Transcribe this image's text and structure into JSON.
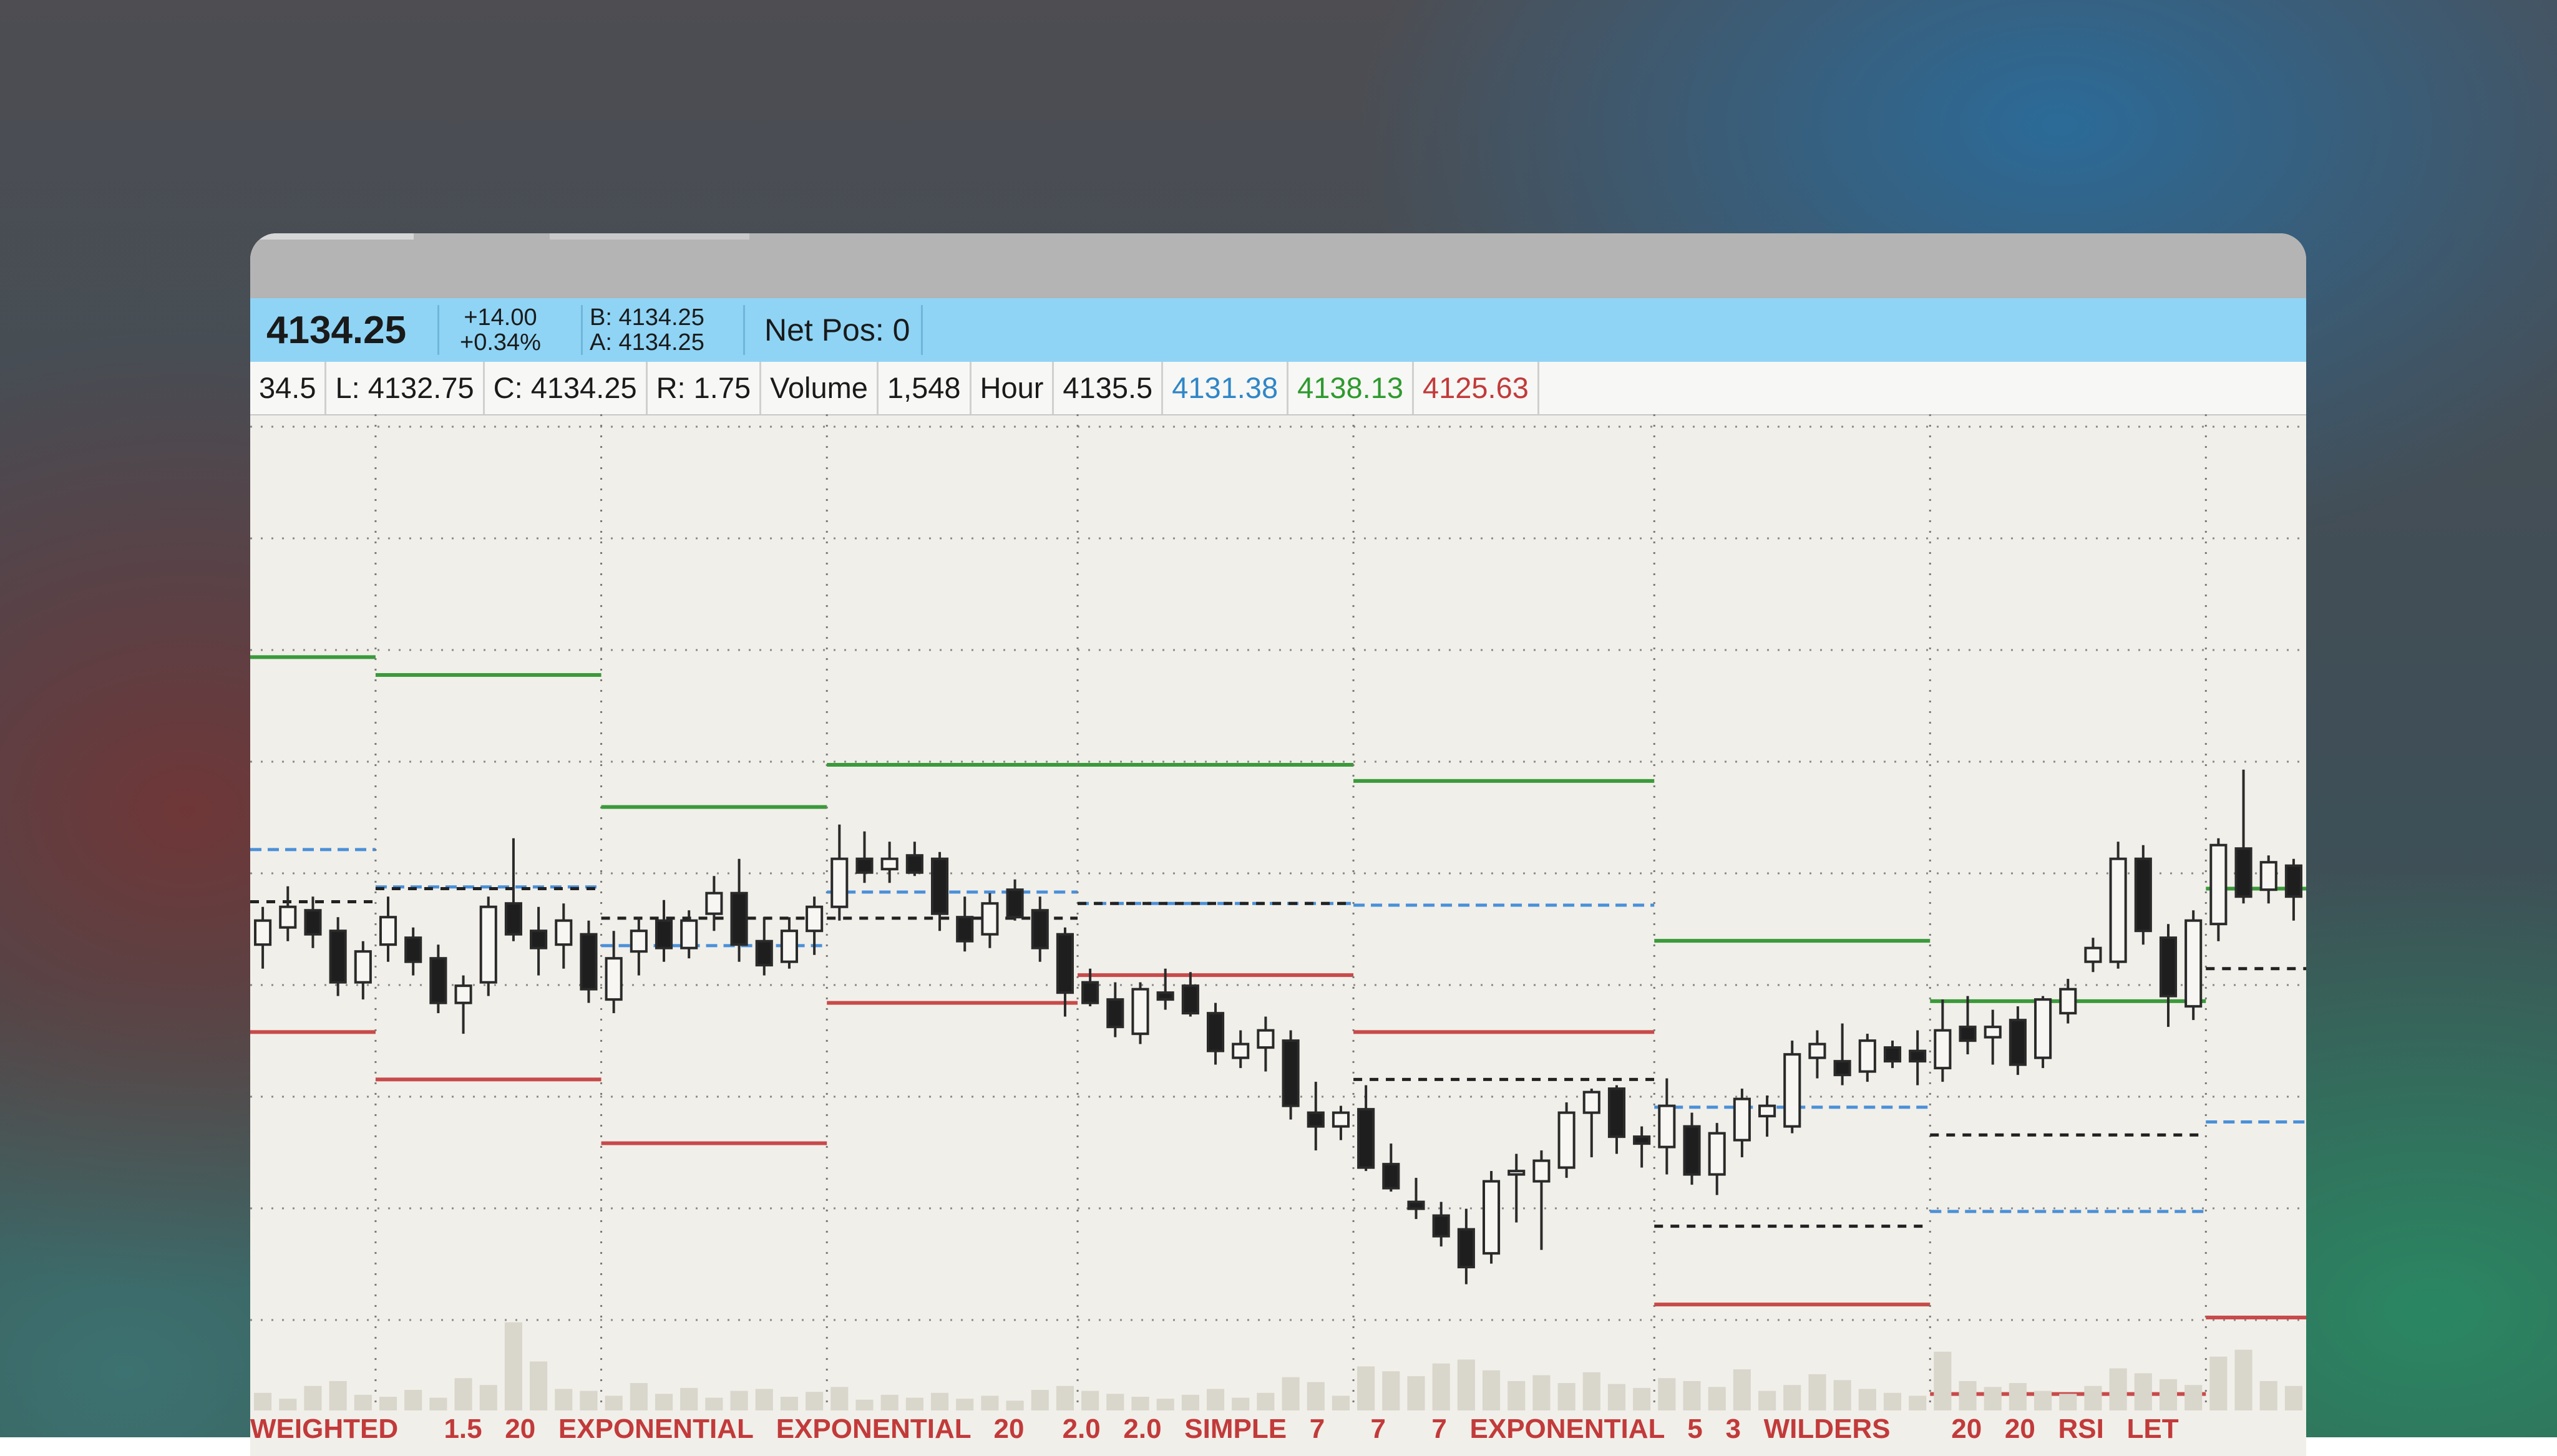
{
  "header": {
    "price": "4134.25",
    "change": "+14.00",
    "change_pct": "+0.34%",
    "bid": "B: 4134.25",
    "ask": "A: 4134.25",
    "net_pos": "Net Pos: 0"
  },
  "info": [
    {
      "text": "34.5"
    },
    {
      "text": "L: 4132.75"
    },
    {
      "text": "C: 4134.25"
    },
    {
      "text": "R: 1.75"
    },
    {
      "text": "Volume"
    },
    {
      "text": "1,548"
    },
    {
      "text": "Hour"
    },
    {
      "text": "4135.5"
    },
    {
      "text": "4131.38",
      "color": "#2f86c8"
    },
    {
      "text": "4138.13",
      "color": "#2e9a2e"
    },
    {
      "text": "4125.63",
      "color": "#c23a3a"
    }
  ],
  "studies": "WEIGHTED      1.5   20   EXPONENTIAL   EXPONENTIAL   20     2.0   2.0   SIMPLE   7      7      7   EXPONENTIAL   5   3   WILDERS        20   20   RSI   LET",
  "chart_data": {
    "type": "candlestick",
    "ylim": [
      4122.92,
      4151.96
    ],
    "vlim": [
      0,
      10000
    ],
    "colors": {
      "up": "#f7f6f2",
      "down": "#1e1e1e",
      "outline": "#2a2a2a",
      "r": "#3a9a3a",
      "pivot": "#4a90d9",
      "s": "#c84a4a",
      "mid": "#222222",
      "volume": "#d9d6cc"
    },
    "sessions": [
      {
        "r": 4144.88,
        "pivot": 4139.27,
        "s": 4133.95,
        "mid": 4137.75,
        "candles": [
          {
            "o": 4136.5,
            "h": 4137.6,
            "l": 4135.8,
            "c": 4137.2,
            "v": 1800
          },
          {
            "o": 4137.0,
            "h": 4138.2,
            "l": 4136.6,
            "c": 4137.6,
            "v": 1200
          },
          {
            "o": 4137.5,
            "h": 4137.9,
            "l": 4136.4,
            "c": 4136.8,
            "v": 2500
          },
          {
            "o": 4136.9,
            "h": 4137.3,
            "l": 4135.0,
            "c": 4135.4,
            "v": 3000
          },
          {
            "o": 4135.4,
            "h": 4136.6,
            "l": 4134.9,
            "c": 4136.3,
            "v": 1600
          }
        ]
      },
      {
        "r": 4144.36,
        "pivot": 4138.18,
        "s": 4132.57,
        "mid": 4138.13,
        "candles": [
          {
            "o": 4136.5,
            "h": 4137.9,
            "l": 4136.0,
            "c": 4137.3,
            "v": 1400
          },
          {
            "o": 4136.7,
            "h": 4137.0,
            "l": 4135.6,
            "c": 4136.0,
            "v": 2100
          },
          {
            "o": 4136.1,
            "h": 4136.5,
            "l": 4134.5,
            "c": 4134.8,
            "v": 1300
          },
          {
            "o": 4134.8,
            "h": 4135.6,
            "l": 4133.9,
            "c": 4135.3,
            "v": 3300
          },
          {
            "o": 4135.4,
            "h": 4137.9,
            "l": 4135.0,
            "c": 4137.6,
            "v": 2600
          },
          {
            "o": 4137.7,
            "h": 4139.6,
            "l": 4136.6,
            "c": 4136.8,
            "v": 9000
          },
          {
            "o": 4136.9,
            "h": 4137.6,
            "l": 4135.6,
            "c": 4136.4,
            "v": 5000
          },
          {
            "o": 4136.5,
            "h": 4137.7,
            "l": 4135.8,
            "c": 4137.2,
            "v": 2200
          },
          {
            "o": 4136.8,
            "h": 4137.2,
            "l": 4134.8,
            "c": 4135.2,
            "v": 2000
          }
        ]
      },
      {
        "r": 4140.51,
        "pivot": 4136.47,
        "s": 4130.71,
        "mid": 4137.27,
        "candles": [
          {
            "o": 4134.9,
            "h": 4136.9,
            "l": 4134.5,
            "c": 4136.1,
            "v": 1500
          },
          {
            "o": 4136.3,
            "h": 4137.3,
            "l": 4135.6,
            "c": 4136.9,
            "v": 2800
          },
          {
            "o": 4137.2,
            "h": 4137.8,
            "l": 4136.0,
            "c": 4136.4,
            "v": 1700
          },
          {
            "o": 4136.4,
            "h": 4137.5,
            "l": 4136.1,
            "c": 4137.2,
            "v": 2300
          },
          {
            "o": 4137.4,
            "h": 4138.5,
            "l": 4136.9,
            "c": 4138.0,
            "v": 1300
          },
          {
            "o": 4138.0,
            "h": 4139.0,
            "l": 4136.0,
            "c": 4136.5,
            "v": 2000
          },
          {
            "o": 4136.6,
            "h": 4137.3,
            "l": 4135.6,
            "c": 4135.9,
            "v": 2200
          },
          {
            "o": 4136.0,
            "h": 4137.3,
            "l": 4135.8,
            "c": 4136.9,
            "v": 1400
          },
          {
            "o": 4136.9,
            "h": 4137.9,
            "l": 4136.2,
            "c": 4137.6,
            "v": 1900
          }
        ]
      },
      {
        "r": 4141.74,
        "pivot": 4138.03,
        "s": 4134.8,
        "mid": 4137.27,
        "candles": [
          {
            "o": 4137.6,
            "h": 4140.0,
            "l": 4137.2,
            "c": 4139.0,
            "v": 2400
          },
          {
            "o": 4139.0,
            "h": 4139.8,
            "l": 4138.3,
            "c": 4138.6,
            "v": 1100
          },
          {
            "o": 4138.7,
            "h": 4139.5,
            "l": 4138.3,
            "c": 4139.0,
            "v": 1600
          },
          {
            "o": 4139.1,
            "h": 4139.5,
            "l": 4138.5,
            "c": 4138.6,
            "v": 1300
          },
          {
            "o": 4139.0,
            "h": 4139.2,
            "l": 4136.9,
            "c": 4137.4,
            "v": 1800
          },
          {
            "o": 4137.3,
            "h": 4137.9,
            "l": 4136.3,
            "c": 4136.6,
            "v": 1200
          },
          {
            "o": 4136.8,
            "h": 4138.0,
            "l": 4136.4,
            "c": 4137.7,
            "v": 1500
          },
          {
            "o": 4138.1,
            "h": 4138.4,
            "l": 4137.2,
            "c": 4137.3,
            "v": 1000
          },
          {
            "o": 4137.5,
            "h": 4137.9,
            "l": 4136.0,
            "c": 4136.4,
            "v": 2100
          },
          {
            "o": 4136.8,
            "h": 4137.0,
            "l": 4134.4,
            "c": 4135.1,
            "v": 2500
          }
        ]
      },
      {
        "r": 4141.74,
        "pivot": 4137.7,
        "s": 4135.61,
        "mid": 4137.7,
        "candles": [
          {
            "o": 4135.4,
            "h": 4135.8,
            "l": 4134.7,
            "c": 4134.8,
            "v": 2000
          },
          {
            "o": 4134.9,
            "h": 4135.4,
            "l": 4133.8,
            "c": 4134.1,
            "v": 1700
          },
          {
            "o": 4133.9,
            "h": 4135.4,
            "l": 4133.6,
            "c": 4135.2,
            "v": 1400
          },
          {
            "o": 4135.1,
            "h": 4135.8,
            "l": 4134.6,
            "c": 4134.9,
            "v": 1200
          },
          {
            "o": 4135.3,
            "h": 4135.7,
            "l": 4134.4,
            "c": 4134.5,
            "v": 1600
          },
          {
            "o": 4134.5,
            "h": 4134.8,
            "l": 4133.0,
            "c": 4133.4,
            "v": 2200
          },
          {
            "o": 4133.2,
            "h": 4134.0,
            "l": 4132.9,
            "c": 4133.6,
            "v": 1300
          },
          {
            "o": 4133.5,
            "h": 4134.4,
            "l": 4132.8,
            "c": 4134.0,
            "v": 1800
          },
          {
            "o": 4133.7,
            "h": 4134.0,
            "l": 4131.4,
            "c": 4131.8,
            "v": 3400
          },
          {
            "o": 4131.6,
            "h": 4132.5,
            "l": 4130.5,
            "c": 4131.2,
            "v": 2900
          },
          {
            "o": 4131.2,
            "h": 4131.8,
            "l": 4130.8,
            "c": 4131.6,
            "v": 1500
          }
        ]
      },
      {
        "r": 4141.27,
        "pivot": 4137.65,
        "s": 4133.95,
        "mid": 4132.57,
        "candles": [
          {
            "o": 4131.7,
            "h": 4132.4,
            "l": 4129.9,
            "c": 4130.0,
            "v": 4500
          },
          {
            "o": 4130.1,
            "h": 4130.7,
            "l": 4129.3,
            "c": 4129.4,
            "v": 4000
          },
          {
            "o": 4129.0,
            "h": 4129.7,
            "l": 4128.5,
            "c": 4128.8,
            "v": 3500
          },
          {
            "o": 4128.6,
            "h": 4129.0,
            "l": 4127.7,
            "c": 4128.0,
            "v": 4800
          },
          {
            "o": 4128.2,
            "h": 4128.8,
            "l": 4126.6,
            "c": 4127.1,
            "v": 5200
          },
          {
            "o": 4127.5,
            "h": 4129.9,
            "l": 4127.2,
            "c": 4129.6,
            "v": 4100
          },
          {
            "o": 4129.8,
            "h": 4130.4,
            "l": 4128.4,
            "c": 4129.9,
            "v": 3000
          },
          {
            "o": 4129.6,
            "h": 4130.5,
            "l": 4127.6,
            "c": 4130.2,
            "v": 3600
          },
          {
            "o": 4130.0,
            "h": 4131.9,
            "l": 4129.7,
            "c": 4131.6,
            "v": 2800
          },
          {
            "o": 4131.6,
            "h": 4132.3,
            "l": 4130.3,
            "c": 4132.2,
            "v": 3900
          },
          {
            "o": 4132.3,
            "h": 4132.4,
            "l": 4130.4,
            "c": 4130.9,
            "v": 2700
          },
          {
            "o": 4130.9,
            "h": 4131.2,
            "l": 4130.0,
            "c": 4130.7,
            "v": 2300
          }
        ]
      },
      {
        "r": 4136.61,
        "pivot": 4131.76,
        "s": 4126.01,
        "mid": 4128.29,
        "candles": [
          {
            "o": 4130.6,
            "h": 4132.6,
            "l": 4129.8,
            "c": 4131.8,
            "v": 3300
          },
          {
            "o": 4131.2,
            "h": 4131.6,
            "l": 4129.5,
            "c": 4129.8,
            "v": 3000
          },
          {
            "o": 4129.8,
            "h": 4131.3,
            "l": 4129.2,
            "c": 4131.0,
            "v": 2400
          },
          {
            "o": 4130.8,
            "h": 4132.3,
            "l": 4130.3,
            "c": 4132.0,
            "v": 4200
          },
          {
            "o": 4131.5,
            "h": 4132.1,
            "l": 4130.9,
            "c": 4131.8,
            "v": 2000
          },
          {
            "o": 4131.2,
            "h": 4133.7,
            "l": 4131.0,
            "c": 4133.3,
            "v": 2600
          },
          {
            "o": 4133.2,
            "h": 4134.0,
            "l": 4132.6,
            "c": 4133.6,
            "v": 3700
          },
          {
            "o": 4133.1,
            "h": 4134.2,
            "l": 4132.4,
            "c": 4132.7,
            "v": 3100
          },
          {
            "o": 4132.8,
            "h": 4133.9,
            "l": 4132.5,
            "c": 4133.7,
            "v": 2200
          },
          {
            "o": 4133.5,
            "h": 4133.7,
            "l": 4132.9,
            "c": 4133.1,
            "v": 1800
          },
          {
            "o": 4133.4,
            "h": 4134.0,
            "l": 4132.4,
            "c": 4133.1,
            "v": 1500
          }
        ]
      },
      {
        "r": 4134.85,
        "pivot": 4128.72,
        "s": 4123.4,
        "mid": 4130.95,
        "candles": [
          {
            "o": 4132.9,
            "h": 4134.9,
            "l": 4132.5,
            "c": 4134.0,
            "v": 6000
          },
          {
            "o": 4134.1,
            "h": 4135.0,
            "l": 4133.3,
            "c": 4133.7,
            "v": 3000
          },
          {
            "o": 4133.8,
            "h": 4134.6,
            "l": 4133.0,
            "c": 4134.1,
            "v": 2400
          },
          {
            "o": 4134.3,
            "h": 4134.7,
            "l": 4132.7,
            "c": 4133.0,
            "v": 2800
          },
          {
            "o": 4133.2,
            "h": 4135.0,
            "l": 4132.9,
            "c": 4134.9,
            "v": 2000
          },
          {
            "o": 4134.5,
            "h": 4135.5,
            "l": 4134.2,
            "c": 4135.2,
            "v": 1700
          },
          {
            "o": 4136.0,
            "h": 4136.7,
            "l": 4135.7,
            "c": 4136.4,
            "v": 2500
          },
          {
            "o": 4136.0,
            "h": 4139.5,
            "l": 4135.8,
            "c": 4139.0,
            "v": 4300
          },
          {
            "o": 4139.0,
            "h": 4139.4,
            "l": 4136.5,
            "c": 4136.9,
            "v": 3800
          },
          {
            "o": 4136.7,
            "h": 4137.1,
            "l": 4134.1,
            "c": 4135.0,
            "v": 3200
          },
          {
            "o": 4134.7,
            "h": 4137.5,
            "l": 4134.3,
            "c": 4137.2,
            "v": 2600
          }
        ]
      },
      {
        "r": 4138.13,
        "pivot": 4131.33,
        "s": 4125.63,
        "mid": 4135.8,
        "candles": [
          {
            "o": 4137.1,
            "h": 4139.6,
            "l": 4136.6,
            "c": 4139.4,
            "v": 5500
          },
          {
            "o": 4139.3,
            "h": 4141.6,
            "l": 4137.7,
            "c": 4137.9,
            "v": 6200
          },
          {
            "o": 4138.1,
            "h": 4139.1,
            "l": 4137.7,
            "c": 4138.9,
            "v": 3000
          },
          {
            "o": 4138.8,
            "h": 4139.0,
            "l": 4137.2,
            "c": 4137.9,
            "v": 2500
          }
        ]
      }
    ]
  }
}
